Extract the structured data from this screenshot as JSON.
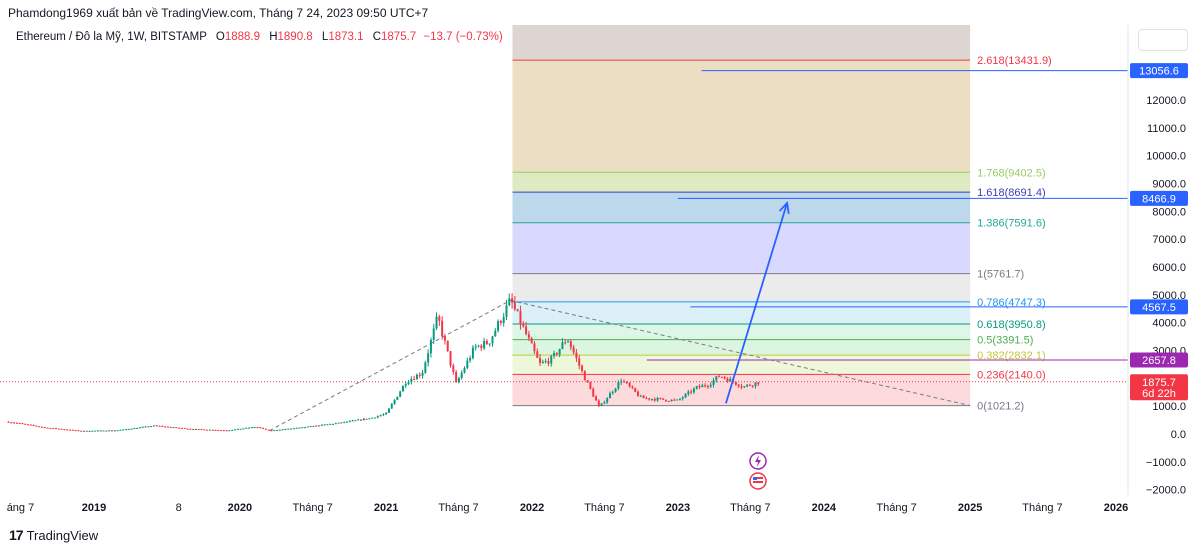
{
  "header": {
    "published_by": "Phamdong1969 xuất bản về TradingView.com, Tháng 7 24, 2023 09:50 UTC+7"
  },
  "symbol": {
    "name": "Ethereum / Đô la Mỹ, 1W, BITSTAMP",
    "open_label": "O",
    "open": "1888.9",
    "high_label": "H",
    "high": "1890.8",
    "low_label": "L",
    "low": "1873.1",
    "close_label": "C",
    "close": "1875.7",
    "change": "−13.7 (−0.73%)"
  },
  "footer": {
    "brand": "TradingView",
    "logo_glyph": "17"
  },
  "colors": {
    "down": "#f23645",
    "up": "#089981",
    "blue": "#2962ff",
    "purple": "#9c27b0"
  },
  "chart_data": {
    "type": "candlestick",
    "symbol": "ETH/USD",
    "timeframe": "1W",
    "ylim": [
      -2500,
      14500
    ],
    "y_ticks": [
      {
        "value": 12000,
        "label": "12000.0"
      },
      {
        "value": 11000,
        "label": "11000.0"
      },
      {
        "value": 10000,
        "label": "10000.0"
      },
      {
        "value": 9000,
        "label": "9000.0"
      },
      {
        "value": 8000,
        "label": "8000.0"
      },
      {
        "value": 7000,
        "label": "7000.0"
      },
      {
        "value": 6000,
        "label": "6000.0"
      },
      {
        "value": 5000,
        "label": "5000.0"
      },
      {
        "value": 4000,
        "label": "4000.0"
      },
      {
        "value": 3000,
        "label": "3000.0"
      },
      {
        "value": 2000,
        "label": "2000.0"
      },
      {
        "value": 1000,
        "label": "1000.0"
      },
      {
        "value": 0,
        "label": "0.0"
      },
      {
        "value": -1000,
        "label": "−1000.0"
      },
      {
        "value": -2000,
        "label": "−2000.0"
      }
    ],
    "x_ticks": [
      {
        "date": "2018-07-01",
        "label": "áng 7",
        "bold": false
      },
      {
        "date": "2019-01-01",
        "label": "2019",
        "bold": true
      },
      {
        "date": "2019-08-01",
        "label": "8",
        "bold": false
      },
      {
        "date": "2020-01-01",
        "label": "2020",
        "bold": true
      },
      {
        "date": "2020-07-01",
        "label": "Tháng 7",
        "bold": false
      },
      {
        "date": "2021-01-01",
        "label": "2021",
        "bold": true
      },
      {
        "date": "2021-07-01",
        "label": "Tháng 7",
        "bold": false
      },
      {
        "date": "2022-01-01",
        "label": "2022",
        "bold": true
      },
      {
        "date": "2022-07-01",
        "label": "Tháng 7",
        "bold": false
      },
      {
        "date": "2023-01-01",
        "label": "2023",
        "bold": true
      },
      {
        "date": "2023-07-01",
        "label": "Tháng 7",
        "bold": false
      },
      {
        "date": "2024-01-01",
        "label": "2024",
        "bold": true
      },
      {
        "date": "2024-07-01",
        "label": "Tháng 7",
        "bold": false
      },
      {
        "date": "2025-01-01",
        "label": "2025",
        "bold": true
      },
      {
        "date": "2025-07-01",
        "label": "Tháng 7",
        "bold": false
      },
      {
        "date": "2026-01-01",
        "label": "2026",
        "bold": true
      }
    ],
    "price_path": [
      [
        "2018-06-01",
        440
      ],
      [
        "2018-09-01",
        230
      ],
      [
        "2018-12-01",
        110
      ],
      [
        "2019-03-01",
        135
      ],
      [
        "2019-06-01",
        300
      ],
      [
        "2019-09-01",
        180
      ],
      [
        "2019-12-01",
        130
      ],
      [
        "2020-02-10",
        260
      ],
      [
        "2020-03-15",
        120
      ],
      [
        "2020-06-01",
        230
      ],
      [
        "2020-09-01",
        390
      ],
      [
        "2020-11-20",
        560
      ],
      [
        "2021-01-01",
        730
      ],
      [
        "2021-02-20",
        1900
      ],
      [
        "2021-04-01",
        2200
      ],
      [
        "2021-05-10",
        4200
      ],
      [
        "2021-06-25",
        1800
      ],
      [
        "2021-08-10",
        3100
      ],
      [
        "2021-09-15",
        3300
      ],
      [
        "2021-11-08",
        4800
      ],
      [
        "2022-01-20",
        2500
      ],
      [
        "2022-02-20",
        2700
      ],
      [
        "2022-03-30",
        3450
      ],
      [
        "2022-05-10",
        2100
      ],
      [
        "2022-06-18",
        950
      ],
      [
        "2022-08-12",
        1950
      ],
      [
        "2022-10-01",
        1300
      ],
      [
        "2022-11-10",
        1250
      ],
      [
        "2022-12-31",
        1200
      ],
      [
        "2023-02-15",
        1650
      ],
      [
        "2023-03-20",
        1800
      ],
      [
        "2023-04-16",
        2100
      ],
      [
        "2023-06-15",
        1700
      ],
      [
        "2023-07-24",
        1875
      ]
    ],
    "fib_extension": {
      "start_date": "2021-11-08",
      "end_date": "2025-01-01",
      "base": 1021.2,
      "levels": [
        {
          "label": "0(1021.2)",
          "value": 1021.2,
          "color": "#787b86",
          "fill": "#f23645",
          "fill_opacity": 0.18
        },
        {
          "label": "0.236(2140.0)",
          "value": 2140.0,
          "color": "#f23645",
          "fill": "#d6f0b0",
          "fill_opacity": 0.45
        },
        {
          "label": "0.382(2832.1)",
          "value": 2832.1,
          "color": "#c0ca33",
          "fill": "#b7ebc3",
          "fill_opacity": 0.5
        },
        {
          "label": "0.5(3391.5)",
          "value": 3391.5,
          "color": "#4caf50",
          "fill": "#c6f0d8",
          "fill_opacity": 0.6
        },
        {
          "label": "0.618(3950.8)",
          "value": 3950.8,
          "color": "#089981",
          "fill": "#c5e6f2",
          "fill_opacity": 0.6
        },
        {
          "label": "0.786(4747.3)",
          "value": 4747.3,
          "color": "#2196f3",
          "fill": "#dddddd",
          "fill_opacity": 0.6
        },
        {
          "label": "1(5761.7)",
          "value": 5761.7,
          "color": "#787b86",
          "fill": "#b9b9ff",
          "fill_opacity": 0.55
        },
        {
          "label": "1.386(7591.6)",
          "value": 7591.6,
          "color": "#26a69a",
          "fill": "#9ac3e0",
          "fill_opacity": 0.65
        },
        {
          "label": "1.618(8691.4)",
          "value": 8691.4,
          "color": "#3d40b6",
          "fill": "#c6dc9a",
          "fill_opacity": 0.6
        },
        {
          "label": "1.768(9402.5)",
          "value": 9402.5,
          "color": "#9ccc65",
          "fill": "#dcc38f",
          "fill_opacity": 0.55
        },
        {
          "label": "2.618(13431.9)",
          "value": 13431.9,
          "color": "#f23645",
          "fill": null,
          "fill_opacity": 0
        }
      ],
      "top_band_fill": "#d9d0cc"
    },
    "horizontal_rays": [
      {
        "start_date": "2023-03-01",
        "value": 13056.6,
        "color": "#2962ff",
        "label": "13056.6"
      },
      {
        "start_date": "2023-01-01",
        "value": 8466.9,
        "color": "#2962ff",
        "label": "8466.9"
      },
      {
        "start_date": "2023-02-01",
        "value": 4567.5,
        "color": "#2962ff",
        "label": "4567.5"
      },
      {
        "start_date": "2022-10-15",
        "value": 2657.8,
        "color": "#9c27b0",
        "label": "2657.8"
      }
    ],
    "trend_lines": [
      {
        "from": [
          "2020-03-15",
          120
        ],
        "to": [
          "2021-11-08",
          4800
        ],
        "style": "dashed",
        "color": "#787b86"
      },
      {
        "from": [
          "2021-11-08",
          4800
        ],
        "to": [
          "2025-01-01",
          1021
        ],
        "style": "dashed",
        "color": "#787b86"
      }
    ],
    "arrow": {
      "from": [
        "2023-05-01",
        1100
      ],
      "to": [
        "2023-10-01",
        8300
      ],
      "color": "#2962ff"
    },
    "current_price": {
      "value": 1875.7,
      "label": "1875.7",
      "countdown": "6d 22h",
      "color": "#f23645"
    }
  }
}
